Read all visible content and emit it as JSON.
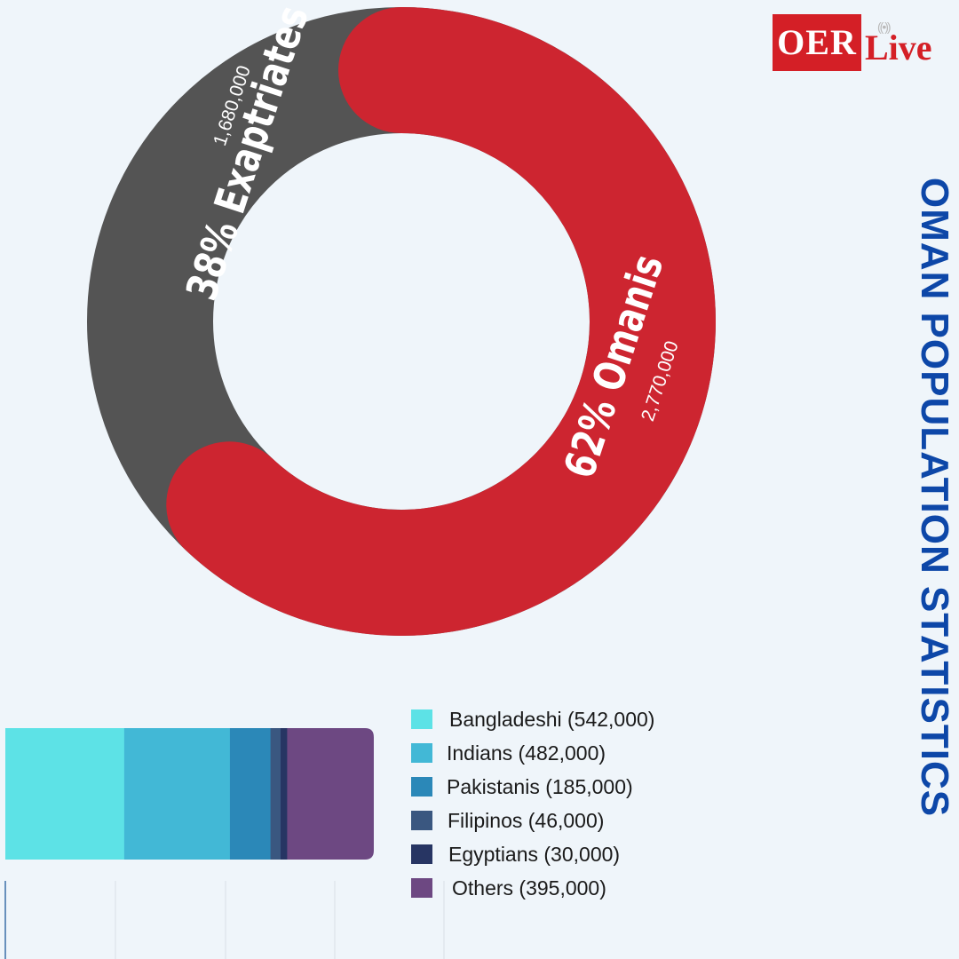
{
  "logo": {
    "brand_a": "OER",
    "brand_b": "Live"
  },
  "title": "OMAN POPULATION STATISTICS",
  "colors": {
    "background": "#eff5fa",
    "omanis": "#cd2530",
    "expatriates": "#545454",
    "title": "#0d47a8",
    "logo_red": "#d41f26"
  },
  "icons": {
    "live": "broadcast-signal-icon"
  },
  "chart_data": [
    {
      "type": "pie",
      "variant": "donut",
      "slices": [
        {
          "label": "Omanis",
          "percent_label": "62% Omanis",
          "value": 2770000,
          "value_label": "2,770,000",
          "percent": 62,
          "color": "#cd2530"
        },
        {
          "label": "Exaptriates",
          "percent_label": "38% Exaptriates",
          "value": 1680000,
          "value_label": "1,680,000",
          "percent": 38,
          "color": "#545454"
        }
      ]
    },
    {
      "type": "bar",
      "orientation": "horizontal",
      "stacked": true,
      "series": [
        {
          "name": "Bangladeshi (542,000)",
          "value": 542000,
          "color": "#5de2e6"
        },
        {
          "name": "Indians (482,000)",
          "value": 482000,
          "color": "#42b8d6"
        },
        {
          "name": "Pakistanis (185,000)",
          "value": 185000,
          "color": "#2b88b8"
        },
        {
          "name": "Filipinos (46,000)",
          "value": 46000,
          "color": "#3a5780"
        },
        {
          "name": "Egyptians (30,000)",
          "value": 30000,
          "color": "#273563"
        },
        {
          "name": "Others (395,000)",
          "value": 395000,
          "color": "#6d4882"
        }
      ],
      "grid": true,
      "legend_position": "right"
    }
  ]
}
